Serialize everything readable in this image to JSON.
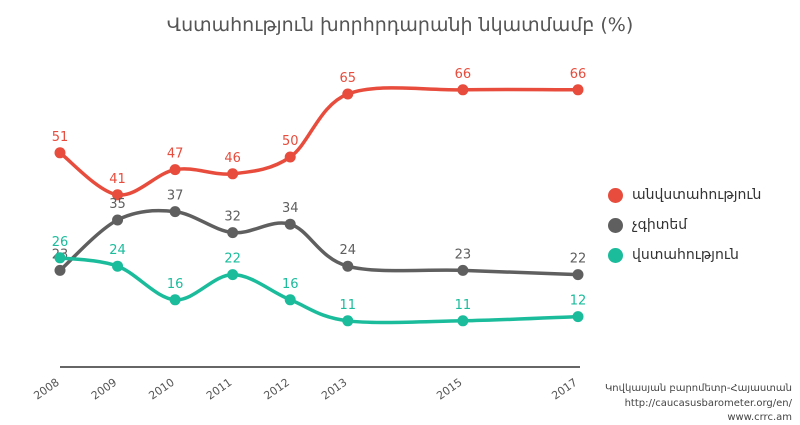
{
  "chart_data": {
    "type": "line",
    "title": "Վստահություն խորհրդարանի նկատմամբ (%)",
    "x": [
      "2008",
      "2009",
      "2010",
      "2011",
      "2012",
      "2013",
      "2015",
      "2017"
    ],
    "ylim": [
      0,
      70
    ],
    "grid": false,
    "legend_position": "right",
    "series": [
      {
        "name": "անվստահություն",
        "color": "#e74c3c",
        "values": [
          51,
          41,
          47,
          46,
          50,
          65,
          66,
          66
        ]
      },
      {
        "name": "չգիտեմ",
        "color": "#5f5f5f",
        "values": [
          23,
          35,
          37,
          32,
          34,
          24,
          23,
          22
        ]
      },
      {
        "name": "վստահություն",
        "color": "#1abc9c",
        "values": [
          26,
          24,
          16,
          22,
          16,
          11,
          11,
          12
        ]
      }
    ]
  },
  "source": {
    "line1": "Կովկասյան բարոմետր-Հայաստան",
    "line2": "http://caucasusbarometer.org/en/",
    "line3": "www.crrc.am"
  }
}
